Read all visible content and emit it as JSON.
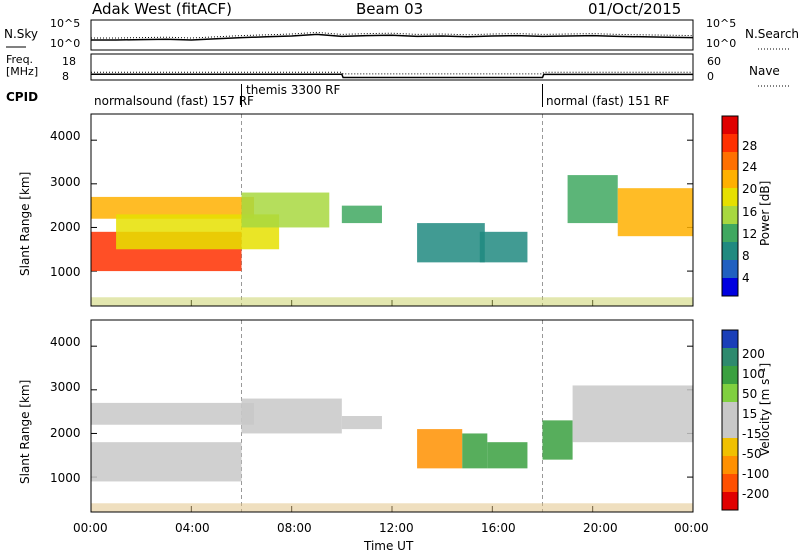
{
  "header": {
    "station": "Adak West (fitACF)",
    "beam": "Beam 03",
    "date": "01/Oct/2015"
  },
  "strips": {
    "nsky_label": "N.Sky",
    "nsearch_label": "N.Search",
    "noise_ticks_left": [
      "10^5",
      "10^0"
    ],
    "noise_ticks_right": [
      "10^5",
      "10^0"
    ],
    "freq_label_1": "Freq.",
    "freq_label_2": "[MHz]",
    "freq_ticks": [
      "18",
      "8"
    ],
    "nave_label": "Nave",
    "nave_ticks": [
      "60",
      "0"
    ],
    "cpid_label": "CPID",
    "cpid_segments": [
      {
        "text": "normalsound (fast) 157 RF"
      },
      {
        "text": "themis 3300 RF"
      },
      {
        "text": "normal (fast) 151 RF"
      }
    ]
  },
  "panels": {
    "ylabel": "Slant Range [km]",
    "yticks": [
      "4000",
      "3000",
      "2000",
      "1000"
    ],
    "xticks": [
      "00:00",
      "04:00",
      "08:00",
      "12:00",
      "16:00",
      "20:00",
      "00:00"
    ],
    "xlabel": "Time UT"
  },
  "colorbars": {
    "power": {
      "label": "Power [dB]",
      "ticks": [
        "28",
        "24",
        "20",
        "16",
        "12",
        "8",
        "4"
      ],
      "colors": [
        "#e00000",
        "#ff3000",
        "#ff7000",
        "#ffb000",
        "#e6e000",
        "#a8d840",
        "#40a860",
        "#208a80",
        "#2060c0",
        "#0000e0"
      ]
    },
    "velocity": {
      "label": "Velocity [m s⁻¹]",
      "ticks": [
        "200",
        "100",
        "50",
        "15",
        "-15",
        "-50",
        "-100",
        "-200"
      ],
      "colors": [
        "#1a3fb8",
        "#2e8a6e",
        "#3aa040",
        "#80d040",
        "#c8c8c8",
        "#c8c8c8",
        "#f0c000",
        "#ff9000",
        "#ff5000",
        "#e00000"
      ]
    }
  },
  "chart_data": {
    "type": "heatmap",
    "title": "Adak West (fitACF) Beam 03 01/Oct/2015",
    "xlabel": "Time UT",
    "ylabel": "Slant Range [km]",
    "x_range_hours": [
      0,
      24
    ],
    "y_range_km": [
      200,
      4600
    ],
    "noise": {
      "sky": [
        [
          0,
          1.0
        ],
        [
          1,
          1.0
        ],
        [
          2,
          1.1
        ],
        [
          3,
          1.2
        ],
        [
          4,
          1.0
        ],
        [
          5,
          1.3
        ],
        [
          6,
          1.6
        ],
        [
          7,
          1.8
        ],
        [
          8,
          2.0
        ],
        [
          9,
          2.4
        ],
        [
          10,
          1.9
        ],
        [
          11,
          2.1
        ],
        [
          12,
          2.2
        ],
        [
          13,
          1.9
        ],
        [
          14,
          2.0
        ],
        [
          15,
          1.8
        ],
        [
          16,
          2.0
        ],
        [
          17,
          2.1
        ],
        [
          18,
          1.9
        ],
        [
          19,
          2.0
        ],
        [
          20,
          2.1
        ],
        [
          21,
          1.9
        ],
        [
          22,
          1.8
        ],
        [
          23,
          1.7
        ],
        [
          24,
          1.6
        ]
      ]
    },
    "frequency_mhz": [
      [
        0,
        10.2
      ],
      [
        6,
        10.2
      ],
      [
        10,
        10.2
      ],
      [
        10.05,
        8.3
      ],
      [
        18,
        8.3
      ],
      [
        18.05,
        10.1
      ],
      [
        24,
        10.1
      ]
    ],
    "nave": [
      [
        0,
        15
      ],
      [
        10,
        15
      ],
      [
        10.05,
        11
      ],
      [
        18,
        11
      ],
      [
        18.05,
        15
      ],
      [
        24,
        15
      ]
    ],
    "cpid_boundaries_hours": [
      6,
      18
    ],
    "power_echoes": [
      {
        "t0": 0.0,
        "t1": 6.0,
        "r0": 1000,
        "r1": 1900,
        "db": 28
      },
      {
        "t0": 0.0,
        "t1": 6.5,
        "r0": 2200,
        "r1": 2700,
        "db": 22
      },
      {
        "t0": 1.0,
        "t1": 7.5,
        "r0": 1500,
        "r1": 2300,
        "db": 18
      },
      {
        "t0": 6.0,
        "t1": 9.5,
        "r0": 2000,
        "r1": 2800,
        "db": 14
      },
      {
        "t0": 10.0,
        "t1": 11.6,
        "r0": 2100,
        "r1": 2500,
        "db": 12
      },
      {
        "t0": 13.0,
        "t1": 15.7,
        "r0": 1200,
        "r1": 2100,
        "db": 10
      },
      {
        "t0": 15.5,
        "t1": 17.4,
        "r0": 1200,
        "r1": 1900,
        "db": 8
      },
      {
        "t0": 19.0,
        "t1": 21.0,
        "r0": 2100,
        "r1": 3200,
        "db": 12
      },
      {
        "t0": 21.0,
        "t1": 24.0,
        "r0": 1800,
        "r1": 2900,
        "db": 20
      }
    ],
    "velocity_echoes": [
      {
        "t0": 0.0,
        "t1": 6.0,
        "r0": 900,
        "r1": 1800,
        "v": 0
      },
      {
        "t0": 0.0,
        "t1": 6.5,
        "r0": 2200,
        "r1": 2700,
        "v": 0
      },
      {
        "t0": 6.0,
        "t1": 10.0,
        "r0": 2000,
        "r1": 2800,
        "v": 0
      },
      {
        "t0": 10.0,
        "t1": 11.6,
        "r0": 2100,
        "r1": 2400,
        "v": 0
      },
      {
        "t0": 13.0,
        "t1": 14.8,
        "r0": 1200,
        "r1": 2100,
        "v": -60
      },
      {
        "t0": 14.8,
        "t1": 15.8,
        "r0": 1200,
        "r1": 2000,
        "v": 40
      },
      {
        "t0": 15.8,
        "t1": 17.4,
        "r0": 1200,
        "r1": 1800,
        "v": 30
      },
      {
        "t0": 18.0,
        "t1": 19.2,
        "r0": 1400,
        "r1": 2300,
        "v": 60
      },
      {
        "t0": 19.2,
        "t1": 24.0,
        "r0": 1800,
        "r1": 3100,
        "v": 0
      }
    ]
  }
}
